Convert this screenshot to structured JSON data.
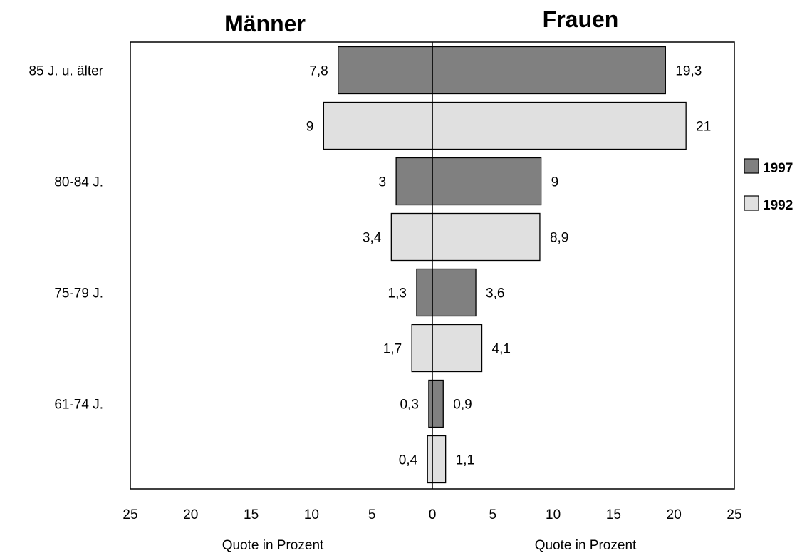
{
  "chart_data": {
    "type": "bar",
    "orientation": "horizontal",
    "layout": "population-pyramid",
    "title_left": "Männer",
    "title_right": "Frauen",
    "categories": [
      "85 J. u. älter",
      "80-84 J.",
      "75-79 J.",
      "61-74  J."
    ],
    "series": [
      {
        "name": "1997",
        "color": "#808080",
        "left_values": [
          7.8,
          3,
          1.3,
          0.3
        ],
        "right_values": [
          19.3,
          9,
          3.6,
          0.9
        ],
        "left_labels": [
          "7,8",
          "3",
          "1,3",
          "0,3"
        ],
        "right_labels": [
          "19,3",
          "9",
          "3,6",
          "0,9"
        ]
      },
      {
        "name": "1992",
        "color": "#e0e0e0",
        "left_values": [
          9,
          3.4,
          1.7,
          0.4
        ],
        "right_values": [
          21,
          8.9,
          4.1,
          1.1
        ],
        "left_labels": [
          "9",
          "3,4",
          "1,7",
          "0,4"
        ],
        "right_labels": [
          "21",
          "8,9",
          "4,1",
          "1,1"
        ]
      }
    ],
    "xlim": [
      0,
      25
    ],
    "x_ticks_left": [
      "25",
      "20",
      "15",
      "10",
      "5",
      "0"
    ],
    "x_ticks_right": [
      "0",
      "5",
      "10",
      "15",
      "20",
      "25"
    ],
    "xlabel_left": "Quote in Prozent",
    "xlabel_right": "Quote in Prozent",
    "grid": false,
    "legend_position": "right"
  }
}
